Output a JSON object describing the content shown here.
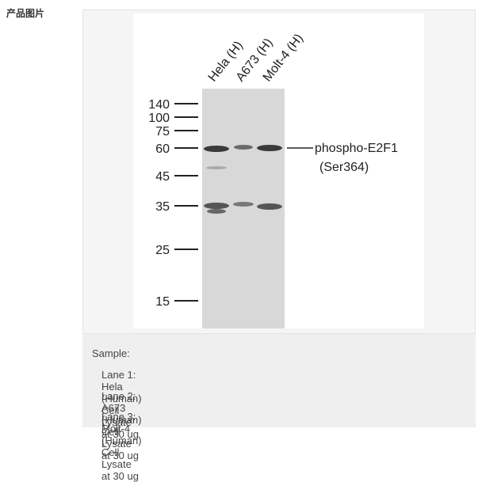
{
  "section_label": "产品图片",
  "blot": {
    "lanes": [
      "Hela (H)",
      "A673 (H)",
      "Molt-4 (H)"
    ],
    "markers": [
      "140",
      "100",
      "75",
      "60",
      "45",
      "35",
      "25",
      "15"
    ],
    "target": {
      "name": "phospho-E2F1",
      "site": "(Ser364)"
    }
  },
  "caption": {
    "heading": "Sample:",
    "lines": [
      "Lane 1: Hela (Human) Cell Lysate at 30 ug",
      "Lane 2: A673 (Human) Cell Lysate at 30 ug",
      "Lane 3: Molt-4 (Human) Cell Lysate at 30 ug"
    ]
  }
}
